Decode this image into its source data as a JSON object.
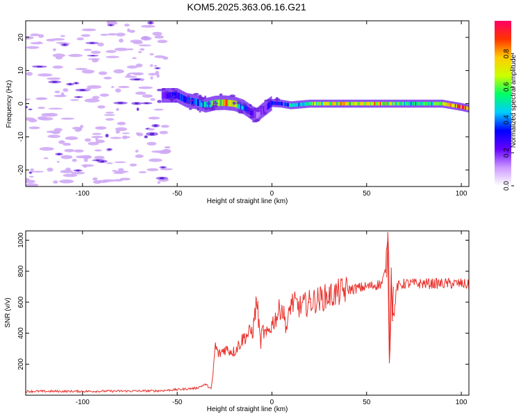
{
  "title": "KOM5.2025.363.06.16.G21",
  "chart_data": [
    {
      "type": "heatmap",
      "name": "spectrogram",
      "title": "KOM5.2025.363.06.16.G21",
      "xlabel": "Height of straight line (km)",
      "ylabel": "Frequency (Hz)",
      "xlim": [
        -130,
        104
      ],
      "ylim": [
        -25,
        25
      ],
      "xticks": [
        -100,
        -50,
        0,
        50,
        100
      ],
      "yticks": [
        -20,
        -10,
        0,
        10,
        20
      ],
      "colorbar": {
        "label": "Normalized spectral amplitude",
        "range": [
          0,
          1
        ],
        "ticks": [
          "0.0",
          "0.2",
          "0.4",
          "0.6",
          "0.8"
        ],
        "tick_values": [
          0.0,
          0.2,
          0.4,
          0.6,
          0.8
        ],
        "colors": [
          "#ffffff",
          "#cc99ff",
          "#6600ff",
          "#0000ff",
          "#00ccff",
          "#00ff66",
          "#ccff00",
          "#ffcc00",
          "#ff3300",
          "#ff0066"
        ]
      },
      "noise_region_x": [
        -130,
        -55
      ],
      "ridge": {
        "x": [
          -58,
          -50,
          -45,
          -40,
          -35,
          -30,
          -25,
          -20,
          -15,
          -10,
          -8,
          -5,
          0,
          5,
          10,
          20,
          30,
          40,
          50,
          60,
          70,
          80,
          90,
          95,
          100,
          104
        ],
        "freq": [
          2.5,
          2.5,
          1.0,
          0.5,
          -0.5,
          0.2,
          0.3,
          0.0,
          -1.0,
          -3.0,
          -3.5,
          -2.0,
          0.2,
          0.0,
          -0.5,
          0.0,
          0.0,
          0.0,
          0.0,
          0.0,
          0.0,
          0.0,
          0.0,
          -0.5,
          -1.0,
          -1.5
        ],
        "amplitude": [
          0.25,
          0.3,
          0.35,
          0.4,
          0.45,
          0.6,
          0.75,
          0.7,
          0.35,
          0.2,
          0.15,
          0.2,
          0.3,
          0.35,
          0.45,
          0.55,
          0.65,
          0.7,
          0.75,
          0.7,
          0.5,
          0.5,
          0.6,
          0.75,
          0.9,
          0.85
        ]
      }
    },
    {
      "type": "line",
      "name": "snr",
      "xlabel": "Height of straight line (km)",
      "ylabel": "SNR (v/v)",
      "xlim": [
        -130,
        104
      ],
      "ylim": [
        0,
        1060
      ],
      "xticks": [
        -100,
        -50,
        0,
        50,
        100
      ],
      "yticks": [
        200,
        400,
        600,
        800,
        1000
      ],
      "color": "#e8302a",
      "series": [
        {
          "name": "SNR",
          "x": [
            -130,
            -100,
            -60,
            -40,
            -35,
            -32,
            -31,
            -30,
            -28,
            -25,
            -20,
            -15,
            -10,
            -8,
            -6,
            -5,
            -3,
            0,
            3,
            5,
            8,
            10,
            15,
            20,
            30,
            40,
            50,
            55,
            58,
            60,
            61,
            62,
            62.5,
            63,
            64,
            66,
            70,
            80,
            90,
            100,
            104
          ],
          "y": [
            25,
            25,
            28,
            45,
            70,
            40,
            150,
            320,
            260,
            300,
            280,
            370,
            420,
            620,
            330,
            420,
            380,
            460,
            520,
            580,
            430,
            600,
            570,
            600,
            640,
            680,
            700,
            710,
            720,
            800,
            1050,
            240,
            300,
            820,
            480,
            700,
            720,
            720,
            720,
            720,
            710
          ]
        }
      ]
    }
  ]
}
